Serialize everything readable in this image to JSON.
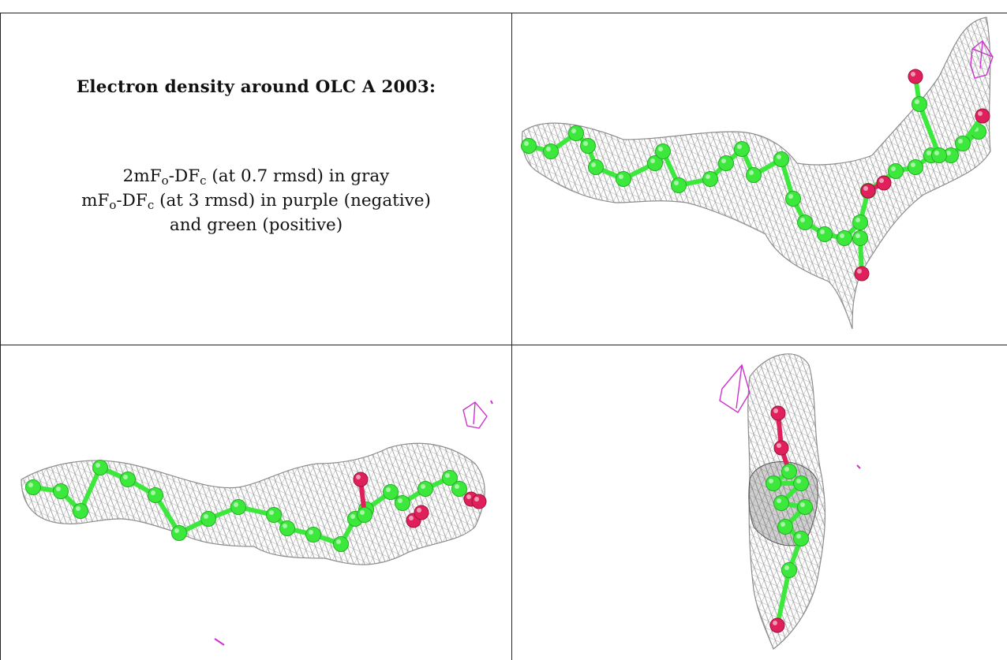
{
  "heading": "Electron density around OLC A 2003:",
  "legend": {
    "line1": {
      "prefix": "2mF",
      "sub1": "o",
      "mid": "-DF",
      "sub2": "c",
      "rest": " (at 0.7 rmsd) in gray"
    },
    "line2": {
      "prefix": "mF",
      "sub1": "o",
      "mid": "-DF",
      "sub2": "c",
      "rest": " (at 3 rmsd) in purple (negative)"
    },
    "line3": "and green (positive)"
  },
  "colors": {
    "mesh": "#8c8c8c",
    "carbon": "#3de83d",
    "oxygen": "#e0205a",
    "negative_density": "#cc33cc",
    "border": "#222222"
  },
  "panels": [
    {
      "id": "view-top-right",
      "molecule": "OLC"
    },
    {
      "id": "view-bottom-left",
      "molecule": "OLC"
    },
    {
      "id": "view-bottom-right",
      "molecule": "OLC"
    }
  ]
}
